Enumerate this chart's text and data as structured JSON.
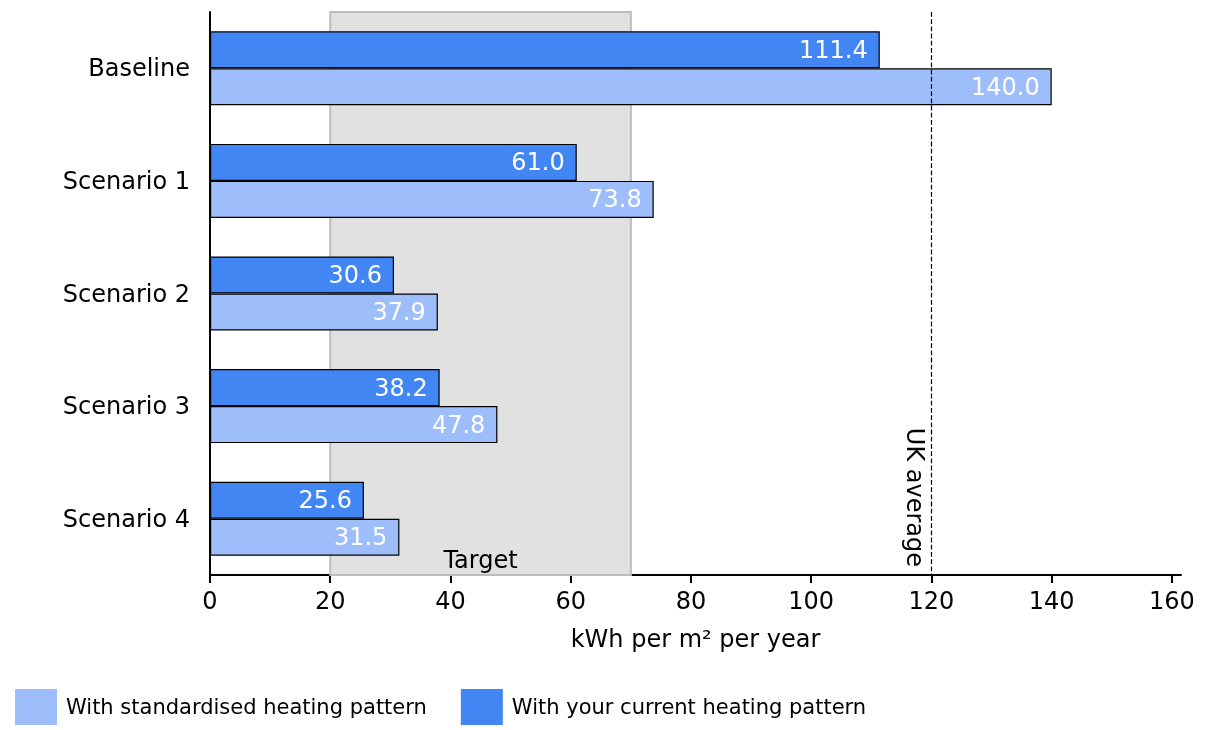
{
  "chart_data": {
    "type": "bar",
    "orientation": "horizontal",
    "categories": [
      "Baseline",
      "Scenario 1",
      "Scenario 2",
      "Scenario 3",
      "Scenario 4"
    ],
    "series": [
      {
        "name": "With standardised heating pattern",
        "color": "#9dbefa",
        "values": [
          140.0,
          73.8,
          37.9,
          47.8,
          31.5
        ],
        "value_labels": [
          "140.0",
          "73.8",
          "37.9",
          "47.8",
          "31.5"
        ]
      },
      {
        "name": "With your current heating pattern",
        "color": "#4286f3",
        "values": [
          111.4,
          61.0,
          30.6,
          38.2,
          25.6
        ],
        "value_labels": [
          "111.4",
          "61.0",
          "30.6",
          "38.2",
          "25.6"
        ]
      }
    ],
    "xlabel": "kWh per m² per year",
    "xlim": [
      0,
      161.5
    ],
    "xticks": [
      0,
      20,
      40,
      60,
      80,
      100,
      120,
      140,
      160
    ],
    "bands": [
      {
        "axis": "x",
        "from": 20,
        "to": 70,
        "label": "Target",
        "color": "#e1e1e1"
      }
    ],
    "ref_lines": [
      {
        "axis": "x",
        "value": 120,
        "label": "UK average",
        "color": "#000000",
        "line_style": "dashed"
      }
    ],
    "grid": false,
    "legend": "bottom left"
  }
}
